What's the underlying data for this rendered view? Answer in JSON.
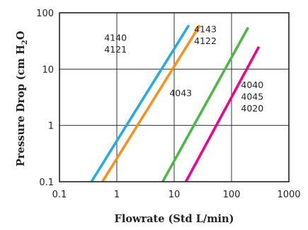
{
  "chart_data": {
    "type": "line",
    "xscale": "log",
    "yscale": "log",
    "xlim": [
      0.1,
      1000
    ],
    "ylim": [
      0.1,
      100
    ],
    "xticks": [
      0.1,
      1,
      10,
      100,
      1000
    ],
    "yticks": [
      0.1,
      1,
      10,
      100
    ],
    "xtick_labels": [
      "0.1",
      "1",
      "10",
      "100",
      "1000"
    ],
    "ytick_labels": [
      "0.1",
      "1",
      "10",
      "100"
    ],
    "xlabel": "Flowrate (Std L/min)",
    "ylabel": {
      "before": "Pressure Drop (cm H",
      "sub": "2",
      "after": "O"
    },
    "grid": true,
    "series": [
      {
        "color": "#29ABE2",
        "x": [
          0.36,
          18
        ],
        "y": [
          0.1,
          60
        ]
      },
      {
        "color": "#F7931E",
        "x": [
          0.56,
          28
        ],
        "y": [
          0.1,
          60
        ]
      },
      {
        "color": "#4DB848",
        "x": [
          6.3,
          195
        ],
        "y": [
          0.1,
          55
        ]
      },
      {
        "color": "#EC008C",
        "x": [
          16,
          300
        ],
        "y": [
          0.1,
          25
        ]
      }
    ],
    "annotations": [
      {
        "lines": [
          "4140",
          "4121"
        ],
        "x": 0.95,
        "y": 32
      },
      {
        "lines": [
          "4143",
          "4122"
        ],
        "x": 35,
        "y": 45
      },
      {
        "lines": [
          "4043"
        ],
        "x": 13,
        "y": 3.3
      },
      {
        "lines": [
          "4040",
          "4045",
          "4020"
        ],
        "x": 230,
        "y": 4.6
      }
    ]
  }
}
